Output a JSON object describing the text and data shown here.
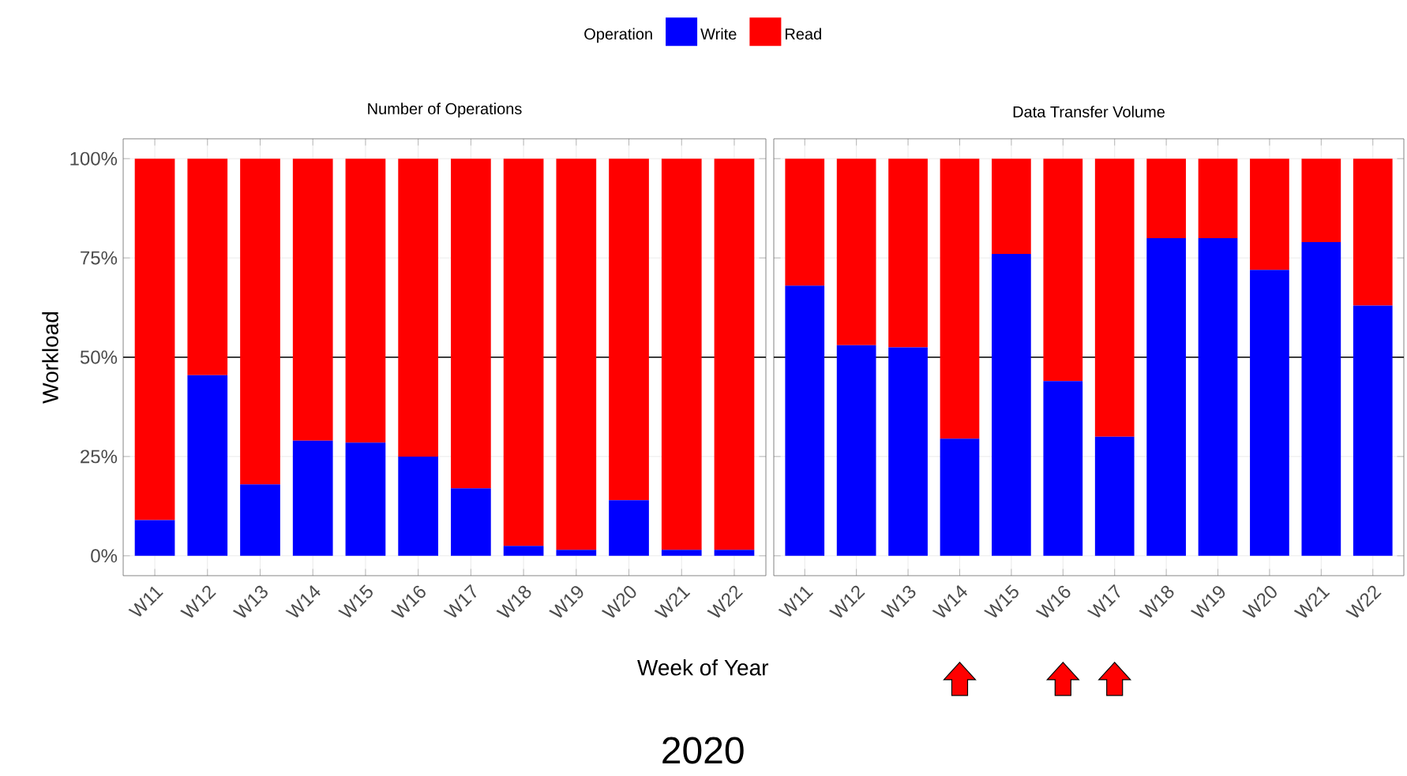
{
  "chart_data": [
    {
      "type": "bar",
      "stacked": true,
      "title": "Number of Operations",
      "ylabel": "Workload",
      "xlabel": "Week of Year",
      "legend_title": "Operation",
      "legend": "top",
      "grid": true,
      "categories": [
        "W11",
        "W12",
        "W13",
        "W14",
        "W15",
        "W16",
        "W17",
        "W18",
        "W19",
        "W20",
        "W21",
        "W22"
      ],
      "series": [
        {
          "name": "Write",
          "color": "#0000ff",
          "values": [
            9,
            45.5,
            18,
            29,
            28.5,
            25,
            17,
            2.5,
            1.5,
            14,
            1.5,
            1.5
          ]
        },
        {
          "name": "Read",
          "color": "#ff0000",
          "values": [
            91,
            54.5,
            82,
            71,
            71.5,
            75,
            83,
            97.5,
            98.5,
            86,
            98.5,
            98.5
          ]
        }
      ],
      "ylim": [
        -5,
        105
      ],
      "yticks": [
        {
          "value": 0,
          "label": "0%"
        },
        {
          "value": 25,
          "label": "25%"
        },
        {
          "value": 50,
          "label": "50%"
        },
        {
          "value": 75,
          "label": "75%"
        },
        {
          "value": 100,
          "label": "100%"
        }
      ],
      "ref_lines": [
        {
          "axis": "y",
          "value": 50,
          "color": "#000000"
        }
      ],
      "annotations": [
        "2020"
      ]
    },
    {
      "type": "bar",
      "stacked": true,
      "title": "Data Transfer Volume",
      "grid": true,
      "tick_labels": "x",
      "categories": [
        "W11",
        "W12",
        "W13",
        "W14",
        "W15",
        "W16",
        "W17",
        "W18",
        "W19",
        "W20",
        "W21",
        "W22"
      ],
      "series": [
        {
          "color": "#0000ff",
          "values": [
            68,
            53,
            52.5,
            29.5,
            76,
            44,
            30,
            80,
            80,
            72,
            79,
            63
          ]
        },
        {
          "color": "#ff0000",
          "values": [
            32,
            47,
            47.5,
            70.5,
            24,
            56,
            70,
            20,
            20,
            28,
            21,
            37
          ]
        }
      ],
      "ylim": [
        -5,
        105
      ],
      "yticks": [
        0,
        25,
        50,
        75,
        100
      ],
      "ref_lines": [
        {
          "axis": "y",
          "value": 50,
          "color": "#000000"
        }
      ]
    }
  ]
}
